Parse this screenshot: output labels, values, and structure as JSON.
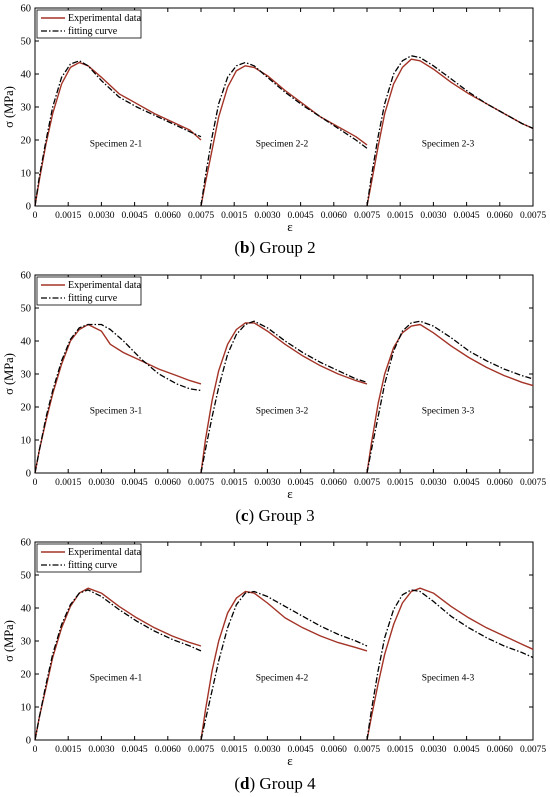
{
  "chart_data": [
    {
      "type": "line",
      "caption_letter": "b",
      "caption_text": "Group 2",
      "xlabel": "ε",
      "ylabel": "σ (MPa)",
      "ylim": [
        0,
        60
      ],
      "yticks": [
        0,
        10,
        20,
        30,
        40,
        50,
        60
      ],
      "xlim": [
        0,
        0.0075
      ],
      "xticks": [
        "0",
        "0.0015",
        "0.0030",
        "0.0045",
        "0.0060",
        "0.0075"
      ],
      "legend": {
        "placement": "top-left",
        "entries": [
          "Experimental data",
          "fitting curve"
        ]
      },
      "grid": false,
      "series_colors": {
        "experimental": "#a33326",
        "fitting": "#000000"
      },
      "specimens": [
        {
          "label": "Specimen 2-1",
          "experimental": {
            "x": [
              0,
              0.0002,
              0.0005,
              0.0008,
              0.0012,
              0.0016,
              0.002,
              0.0024,
              0.003,
              0.0038,
              0.0046,
              0.0054,
              0.0062,
              0.007,
              0.0075
            ],
            "y": [
              0,
              8,
              19,
              28,
              37,
              42,
              43.5,
              42.5,
              39,
              34,
              31,
              28,
              25.5,
              23,
              20
            ]
          },
          "fitting": {
            "x": [
              0,
              0.0002,
              0.0005,
              0.0008,
              0.0012,
              0.0016,
              0.002,
              0.0024,
              0.003,
              0.0038,
              0.0046,
              0.0054,
              0.0062,
              0.007,
              0.0075
            ],
            "y": [
              0,
              9,
              20,
              30,
              39,
              43,
              44,
              42.5,
              38,
              33,
              30,
              27.5,
              25,
              22.5,
              21
            ]
          }
        },
        {
          "label": "Specimen 2-2",
          "experimental": {
            "x": [
              0,
              0.0002,
              0.0005,
              0.0008,
              0.0012,
              0.0016,
              0.002,
              0.0024,
              0.003,
              0.0038,
              0.0046,
              0.0054,
              0.0062,
              0.007,
              0.0075
            ],
            "y": [
              0,
              7,
              17,
              27,
              36,
              41,
              42.5,
              42,
              39.5,
              35,
              31,
              27,
              24,
              21,
              18.5
            ]
          },
          "fitting": {
            "x": [
              0,
              0.0002,
              0.0005,
              0.0008,
              0.0012,
              0.0016,
              0.002,
              0.0024,
              0.003,
              0.0038,
              0.0046,
              0.0054,
              0.0062,
              0.007,
              0.0075
            ],
            "y": [
              0,
              9,
              21,
              31,
              39,
              42.5,
              43.5,
              42.5,
              39,
              34.5,
              30.5,
              27,
              23.5,
              20,
              17.5
            ]
          }
        },
        {
          "label": "Specimen 2-3",
          "experimental": {
            "x": [
              0,
              0.0002,
              0.0005,
              0.0008,
              0.0012,
              0.0016,
              0.002,
              0.0024,
              0.003,
              0.0038,
              0.0046,
              0.0054,
              0.0062,
              0.007,
              0.0075
            ],
            "y": [
              0,
              7,
              18,
              28,
              37,
              42,
              44.5,
              44,
              41.5,
              37.5,
              34,
              31,
              28,
              25,
              23.5
            ]
          },
          "fitting": {
            "x": [
              0,
              0.0002,
              0.0005,
              0.0008,
              0.0012,
              0.0016,
              0.002,
              0.0024,
              0.003,
              0.0038,
              0.0046,
              0.0054,
              0.0062,
              0.007,
              0.0075
            ],
            "y": [
              0,
              9,
              21,
              31,
              40,
              44,
              45.5,
              45,
              42.5,
              38.5,
              34.5,
              31,
              28,
              25,
              23.5
            ]
          }
        }
      ]
    },
    {
      "type": "line",
      "caption_letter": "c",
      "caption_text": "Group 3",
      "xlabel": "ε",
      "ylabel": "σ (MPa)",
      "ylim": [
        0,
        60
      ],
      "yticks": [
        0,
        10,
        20,
        30,
        40,
        50,
        60
      ],
      "xlim": [
        0,
        0.0075
      ],
      "xticks": [
        "0",
        "0.0015",
        "0.0030",
        "0.0045",
        "0.0060",
        "0.0075"
      ],
      "legend": {
        "placement": "top-left",
        "entries": [
          "Experimental data",
          "fitting curve"
        ]
      },
      "grid": false,
      "series_colors": {
        "experimental": "#a33326",
        "fitting": "#000000"
      },
      "specimens": [
        {
          "label": "Specimen 3-1",
          "experimental": {
            "x": [
              0,
              0.0002,
              0.0005,
              0.0008,
              0.0012,
              0.0016,
              0.002,
              0.0024,
              0.003,
              0.0034,
              0.004,
              0.0048,
              0.0056,
              0.0064,
              0.007,
              0.0075
            ],
            "y": [
              0,
              7,
              16,
              24,
              33,
              40,
              43.5,
              45,
              43,
              39,
              36.5,
              34,
              31.5,
              29.5,
              28,
              27
            ]
          },
          "fitting": {
            "x": [
              0,
              0.0002,
              0.0005,
              0.0008,
              0.0012,
              0.0016,
              0.002,
              0.0024,
              0.003,
              0.0034,
              0.004,
              0.0048,
              0.0056,
              0.0064,
              0.007,
              0.0075
            ],
            "y": [
              0,
              7,
              17,
              25,
              34,
              40.5,
              44,
              45,
              45,
              43.5,
              40,
              34.5,
              30,
              27,
              25.5,
              25
            ]
          }
        },
        {
          "label": "Specimen 3-2",
          "experimental": {
            "x": [
              0,
              0.0002,
              0.0005,
              0.0008,
              0.0012,
              0.0016,
              0.002,
              0.0024,
              0.003,
              0.0038,
              0.0046,
              0.0054,
              0.0062,
              0.007,
              0.0075
            ],
            "y": [
              0,
              10,
              22,
              31,
              39,
              43.5,
              45.5,
              45.5,
              43,
              39,
              35.5,
              32.5,
              30,
              28,
              27
            ]
          },
          "fitting": {
            "x": [
              0,
              0.0002,
              0.0005,
              0.0008,
              0.0012,
              0.0016,
              0.002,
              0.0024,
              0.003,
              0.0038,
              0.0046,
              0.0054,
              0.0062,
              0.007,
              0.0075
            ],
            "y": [
              0,
              7,
              17,
              26,
              36,
              42,
              45,
              46,
              44,
              40,
              36.5,
              33.5,
              31,
              28.5,
              27.5
            ]
          }
        },
        {
          "label": "Specimen 3-3",
          "experimental": {
            "x": [
              0,
              0.0002,
              0.0005,
              0.0008,
              0.0012,
              0.0016,
              0.002,
              0.0024,
              0.003,
              0.0038,
              0.0046,
              0.0054,
              0.0062,
              0.007,
              0.0075
            ],
            "y": [
              0,
              9,
              21,
              30,
              38,
              42.5,
              44.5,
              45,
              42.5,
              38.5,
              35,
              32,
              29.5,
              27.5,
              26.5
            ]
          },
          "fitting": {
            "x": [
              0,
              0.0002,
              0.0005,
              0.0008,
              0.0012,
              0.0016,
              0.002,
              0.0024,
              0.003,
              0.0038,
              0.0046,
              0.0054,
              0.0062,
              0.007,
              0.0075
            ],
            "y": [
              0,
              7,
              17,
              27,
              37,
              43,
              45.5,
              46,
              44.5,
              41,
              37,
              34,
              31.5,
              29.5,
              28.5
            ]
          }
        }
      ]
    },
    {
      "type": "line",
      "caption_letter": "d",
      "caption_text": "Group 4",
      "xlabel": "ε",
      "ylabel": "σ (MPa)",
      "ylim": [
        0,
        60
      ],
      "yticks": [
        0,
        10,
        20,
        30,
        40,
        50,
        60
      ],
      "xlim": [
        0,
        0.0075
      ],
      "xticks": [
        "0",
        "0.0015",
        "0.0030",
        "0.0045",
        "0.0060",
        "0.0075"
      ],
      "legend": {
        "placement": "top-left",
        "entries": [
          "Experimental data",
          "fitting curve"
        ]
      },
      "grid": false,
      "series_colors": {
        "experimental": "#a33326",
        "fitting": "#000000"
      },
      "specimens": [
        {
          "label": "Specimen 4-1",
          "experimental": {
            "x": [
              0,
              0.0002,
              0.0005,
              0.0008,
              0.0012,
              0.0016,
              0.002,
              0.0024,
              0.003,
              0.0038,
              0.0046,
              0.0054,
              0.0062,
              0.007,
              0.0075
            ],
            "y": [
              0,
              7,
              16,
              25,
              34,
              40.5,
              44.5,
              46,
              44.5,
              40.5,
              37,
              34,
              31.5,
              29.5,
              28.5
            ]
          },
          "fitting": {
            "x": [
              0,
              0.0002,
              0.0005,
              0.0008,
              0.0012,
              0.0016,
              0.002,
              0.0024,
              0.003,
              0.0038,
              0.0046,
              0.0054,
              0.0062,
              0.007,
              0.0075
            ],
            "y": [
              0,
              7,
              17,
              26,
              35,
              41,
              44.5,
              45.5,
              43.5,
              39.5,
              36,
              33,
              30.5,
              28.5,
              27
            ]
          }
        },
        {
          "label": "Specimen 4-2",
          "experimental": {
            "x": [
              0,
              0.0002,
              0.0005,
              0.0008,
              0.0012,
              0.0016,
              0.002,
              0.0024,
              0.003,
              0.0038,
              0.0046,
              0.0054,
              0.0062,
              0.007,
              0.0075
            ],
            "y": [
              0,
              9,
              21,
              30,
              38.5,
              43,
              45,
              44.5,
              41.5,
              37,
              34,
              31.5,
              29.5,
              28,
              27
            ]
          },
          "fitting": {
            "x": [
              0,
              0.0002,
              0.0005,
              0.0008,
              0.0012,
              0.0016,
              0.002,
              0.0024,
              0.003,
              0.0038,
              0.0046,
              0.0054,
              0.0062,
              0.007,
              0.0075
            ],
            "y": [
              0,
              6,
              15,
              24,
              34,
              41,
              44.5,
              45,
              43.5,
              40.5,
              37.5,
              34.5,
              32,
              30,
              28.5
            ]
          }
        },
        {
          "label": "Specimen 4-3",
          "experimental": {
            "x": [
              0,
              0.0002,
              0.0005,
              0.0008,
              0.0012,
              0.0016,
              0.002,
              0.0024,
              0.003,
              0.0038,
              0.0046,
              0.0054,
              0.0062,
              0.007,
              0.0075
            ],
            "y": [
              0,
              7,
              17,
              26,
              35,
              41.5,
              45,
              46,
              44.5,
              40.5,
              37,
              34,
              31.5,
              29,
              27.5
            ]
          },
          "fitting": {
            "x": [
              0,
              0.0002,
              0.0005,
              0.0008,
              0.0012,
              0.0016,
              0.002,
              0.0024,
              0.003,
              0.0038,
              0.0046,
              0.0054,
              0.0062,
              0.007,
              0.0075
            ],
            "y": [
              0,
              9,
              21,
              31,
              39.5,
              44,
              45.5,
              45,
              42,
              37.5,
              34,
              31,
              28.5,
              26.5,
              25
            ]
          }
        }
      ]
    }
  ]
}
